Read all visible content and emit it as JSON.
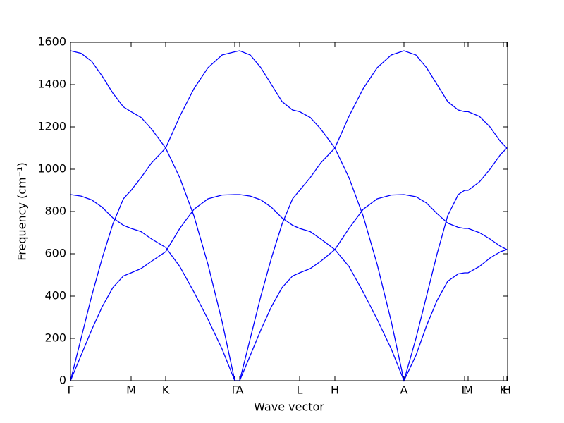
{
  "chart_data": {
    "type": "line",
    "xlabel": "Wave vector",
    "ylabel": "Frequency (cm⁻¹)",
    "x": [
      0,
      15,
      30,
      45,
      60,
      75,
      86,
      100,
      115,
      135,
      155,
      175,
      195,
      215,
      233,
      240,
      255,
      270,
      285,
      300,
      315,
      325,
      340,
      355,
      375,
      395,
      415,
      435,
      455,
      473,
      490,
      505,
      520,
      535,
      550,
      559,
      564,
      580,
      595,
      610,
      619
    ],
    "series": [
      {
        "color": "#0000ff",
        "values": [
          1560,
          1548,
          1510,
          1440,
          1360,
          1295,
          1272,
          1245,
          1190,
          1100,
          960,
          780,
          550,
          280,
          0,
          0,
          200,
          400,
          580,
          740,
          860,
          900,
          960,
          1030,
          1100,
          1250,
          1380,
          1480,
          1540,
          1560,
          1540,
          1480,
          1400,
          1320,
          1280,
          1272,
          1272,
          1250,
          1200,
          1130,
          1100
        ]
      },
      {
        "color": "#0000ff",
        "values": [
          0,
          200,
          400,
          580,
          740,
          860,
          900,
          960,
          1030,
          1100,
          1250,
          1380,
          1480,
          1540,
          1555,
          1560,
          1540,
          1480,
          1400,
          1320,
          1280,
          1272,
          1245,
          1190,
          1100,
          960,
          780,
          550,
          280,
          0,
          200,
          400,
          600,
          780,
          880,
          900,
          900,
          940,
          1000,
          1070,
          1100
        ]
      },
      {
        "color": "#0000ff",
        "values": [
          880,
          873,
          855,
          820,
          770,
          735,
          720,
          705,
          670,
          630,
          540,
          420,
          290,
          150,
          0,
          0,
          120,
          240,
          350,
          440,
          495,
          510,
          530,
          565,
          620,
          720,
          810,
          860,
          878,
          880,
          870,
          840,
          790,
          745,
          725,
          720,
          720,
          700,
          670,
          635,
          620
        ]
      },
      {
        "color": "#0000ff",
        "values": [
          0,
          120,
          240,
          350,
          440,
          495,
          510,
          530,
          565,
          610,
          720,
          810,
          860,
          878,
          880,
          880,
          873,
          855,
          820,
          770,
          735,
          720,
          705,
          670,
          620,
          540,
          420,
          290,
          150,
          0,
          120,
          260,
          380,
          470,
          505,
          510,
          510,
          540,
          580,
          610,
          620
        ]
      }
    ],
    "xlim": [
      0,
      620
    ],
    "xticks": [
      {
        "value": 0,
        "label": "Γ"
      },
      {
        "value": 86,
        "label": "M"
      },
      {
        "value": 135,
        "label": "K"
      },
      {
        "value": 233,
        "label": "Γ"
      },
      {
        "value": 240,
        "label": "A"
      },
      {
        "value": 325,
        "label": "L"
      },
      {
        "value": 375,
        "label": "H"
      },
      {
        "value": 473,
        "label": "A"
      },
      {
        "value": 559,
        "label": "L"
      },
      {
        "value": 564,
        "label": "M"
      },
      {
        "value": 614,
        "label": "K"
      },
      {
        "value": 619,
        "label": "H"
      }
    ],
    "ylim": [
      0,
      1600
    ],
    "yticks": [
      0,
      200,
      400,
      600,
      800,
      1000,
      1200,
      1400,
      1600
    ]
  }
}
